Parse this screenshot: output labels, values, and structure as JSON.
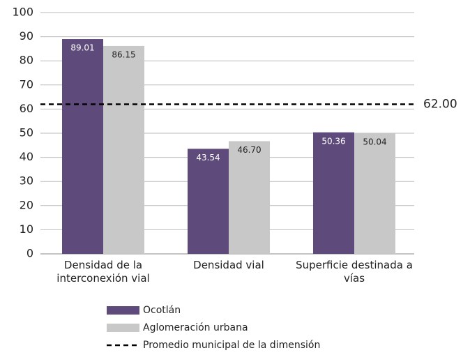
{
  "chart_data": {
    "type": "bar",
    "categories": [
      "Densidad de la interconexión vial",
      "Densidad vial",
      "Superficie destinada a vías"
    ],
    "series": [
      {
        "name": "Ocotlán",
        "color": "#5f4b7b",
        "values": [
          89.01,
          43.54,
          50.36
        ],
        "value_labels": [
          "89.01",
          "43.54",
          "50.36"
        ]
      },
      {
        "name": "Aglomeración urbana",
        "color": "#c8c8c8",
        "values": [
          86.15,
          46.7,
          50.04
        ],
        "value_labels": [
          "86.15",
          "46.70",
          "50.04"
        ]
      }
    ],
    "reference_line": {
      "name": "Promedio municipal de la dimensión",
      "value": 62,
      "label": "62.00"
    },
    "ylim": [
      0,
      100
    ],
    "yticks": [
      0,
      10,
      20,
      30,
      40,
      50,
      60,
      70,
      80,
      90,
      100
    ],
    "grid": true
  }
}
